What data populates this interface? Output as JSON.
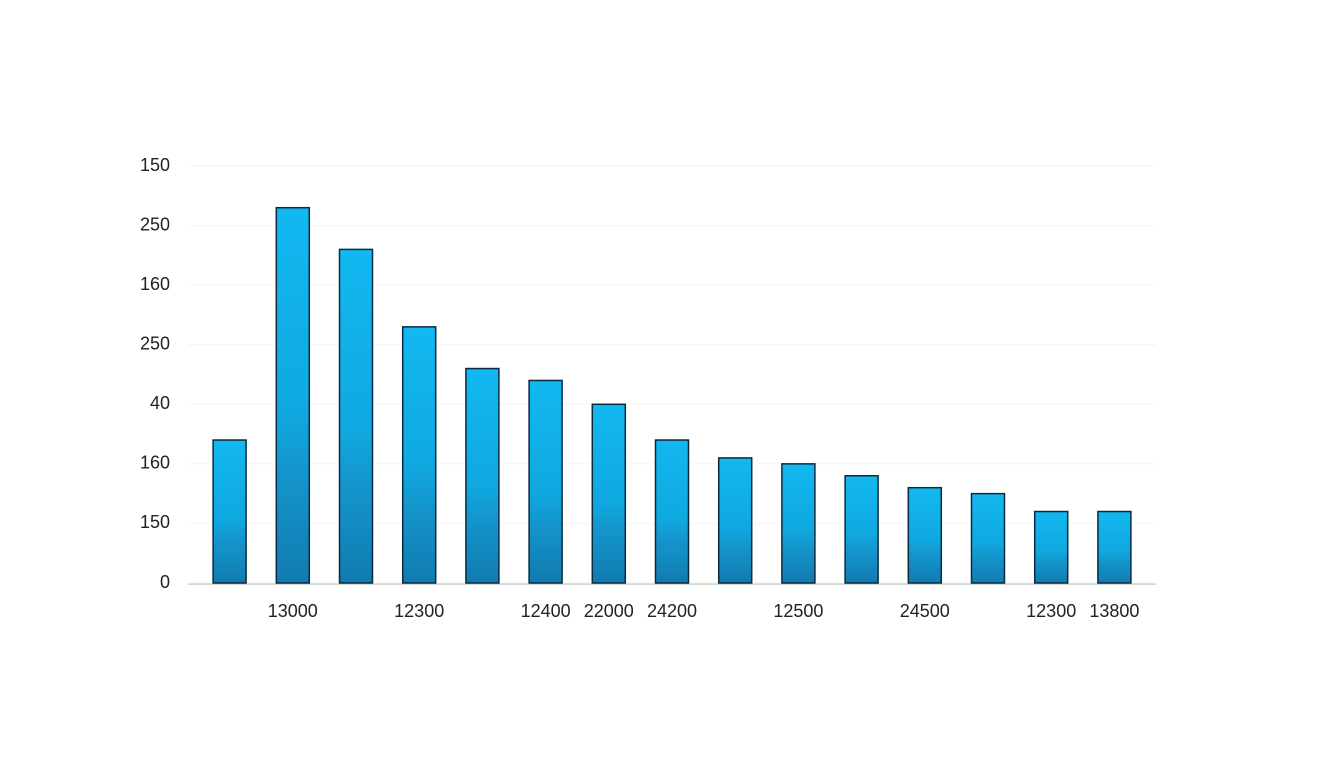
{
  "chart_data": {
    "type": "bar",
    "categories": [
      null,
      "13000",
      null,
      "12300",
      null,
      "12400",
      "22000",
      "24200",
      null,
      "12500",
      null,
      "24500",
      null,
      "12300",
      "13800"
    ],
    "values": [
      2.4,
      6.3,
      5.6,
      4.3,
      3.6,
      3.4,
      3.0,
      2.4,
      2.1,
      2.0,
      1.8,
      1.6,
      1.5,
      1.2,
      1.2
    ],
    "color": "#0fb4ec",
    "ylim": [
      0,
      7
    ],
    "yticks": [
      0,
      {
        "value": 1,
        "label": "150"
      },
      {
        "value": 2,
        "label": "160"
      },
      {
        "value": 3,
        "label": "40"
      },
      {
        "value": 4,
        "label": "250"
      },
      {
        "value": 5,
        "label": "160"
      },
      {
        "value": 6,
        "label": "250"
      },
      {
        "value": 7,
        "label": "150"
      }
    ],
    "grid": true
  }
}
